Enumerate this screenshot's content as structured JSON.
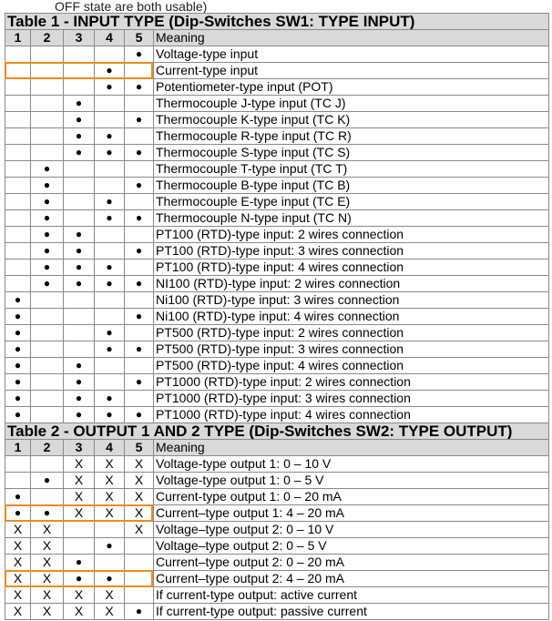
{
  "cut_text": "OFF state are both usable)",
  "table1": {
    "title": "Table 1 - INPUT TYPE (Dip-Switches SW1: TYPE INPUT)",
    "headers": [
      "1",
      "2",
      "3",
      "4",
      "5",
      "Meaning"
    ],
    "rows": [
      {
        "s": [
          "",
          "",
          "",
          "",
          "●"
        ],
        "m": "Voltage-type input"
      },
      {
        "s": [
          "",
          "",
          "",
          "●",
          ""
        ],
        "m": "Current-type input",
        "highlight": true
      },
      {
        "s": [
          "",
          "",
          "",
          "●",
          "●"
        ],
        "m": "Potentiometer-type input (POT)"
      },
      {
        "s": [
          "",
          "",
          "●",
          "",
          ""
        ],
        "m": "Thermocouple J-type input (TC J)"
      },
      {
        "s": [
          "",
          "",
          "●",
          "",
          "●"
        ],
        "m": "Thermocouple K-type input (TC K)"
      },
      {
        "s": [
          "",
          "",
          "●",
          "●",
          ""
        ],
        "m": "Thermocouple R-type input (TC R)"
      },
      {
        "s": [
          "",
          "",
          "●",
          "●",
          "●"
        ],
        "m": "Thermocouple S-type input (TC S)"
      },
      {
        "s": [
          "",
          "●",
          "",
          "",
          ""
        ],
        "m": "Thermocouple T-type input (TC T)"
      },
      {
        "s": [
          "",
          "●",
          "",
          "",
          "●"
        ],
        "m": "Thermocouple B-type input (TC B)"
      },
      {
        "s": [
          "",
          "●",
          "",
          "●",
          ""
        ],
        "m": "Thermocouple E-type input (TC E)"
      },
      {
        "s": [
          "",
          "●",
          "",
          "●",
          "●"
        ],
        "m": "Thermocouple N-type input (TC N)"
      },
      {
        "s": [
          "",
          "●",
          "●",
          "",
          ""
        ],
        "m": "PT100 (RTD)-type input: 2 wires connection"
      },
      {
        "s": [
          "",
          "●",
          "●",
          "",
          "●"
        ],
        "m": "PT100 (RTD)-type input: 3 wires connection"
      },
      {
        "s": [
          "",
          "●",
          "●",
          "●",
          ""
        ],
        "m": "PT100 (RTD)-type input: 4 wires connection"
      },
      {
        "s": [
          "",
          "●",
          "●",
          "●",
          "●"
        ],
        "m": "NI100 (RTD)-type input: 2 wires connection"
      },
      {
        "s": [
          "●",
          "",
          "",
          "",
          ""
        ],
        "m": "Ni100 (RTD)-type input: 3 wires connection"
      },
      {
        "s": [
          "●",
          "",
          "",
          "",
          "●"
        ],
        "m": "Ni100 (RTD)-type input: 4 wires connection"
      },
      {
        "s": [
          "●",
          "",
          "",
          "●",
          ""
        ],
        "m": "PT500 (RTD)-type input: 2 wires connection"
      },
      {
        "s": [
          "●",
          "",
          "",
          "●",
          "●"
        ],
        "m": "PT500 (RTD)-type input: 3 wires connection"
      },
      {
        "s": [
          "●",
          "",
          "●",
          "",
          ""
        ],
        "m": "PT500 (RTD)-type input: 4 wires connection"
      },
      {
        "s": [
          "●",
          "",
          "●",
          "",
          "●"
        ],
        "m": "PT1000 (RTD)-type input: 2 wires connection"
      },
      {
        "s": [
          "●",
          "",
          "●",
          "●",
          ""
        ],
        "m": "PT1000 (RTD)-type input: 3 wires connection"
      },
      {
        "s": [
          "●",
          "",
          "●",
          "●",
          "●"
        ],
        "m": "PT1000 (RTD)-type input: 4 wires connection"
      }
    ]
  },
  "table2": {
    "title": "Table 2 - OUTPUT 1 AND 2 TYPE (Dip-Switches SW2: TYPE OUTPUT)",
    "headers": [
      "1",
      "2",
      "3",
      "4",
      "5",
      "Meaning"
    ],
    "rows": [
      {
        "s": [
          "",
          "",
          "X",
          "X",
          "X"
        ],
        "m": "Voltage-type output 1:  0 – 10 V"
      },
      {
        "s": [
          "",
          "●",
          "X",
          "X",
          "X"
        ],
        "m": "Voltage-type output 1:  0 – 5 V"
      },
      {
        "s": [
          "●",
          "",
          "X",
          "X",
          "X"
        ],
        "m": "Current-type output 1:  0 – 20 mA"
      },
      {
        "s": [
          "●",
          "●",
          "X",
          "X",
          "X"
        ],
        "m": "Current–type output 1:  4 – 20 mA",
        "highlight": true
      },
      {
        "s": [
          "X",
          "X",
          "",
          "",
          "X"
        ],
        "m": "Voltage–type output 2:  0 – 10 V"
      },
      {
        "s": [
          "X",
          "X",
          "",
          "●",
          ""
        ],
        "m": "Voltage–type output 2:  0 – 5 V"
      },
      {
        "s": [
          "X",
          "X",
          "●",
          "",
          ""
        ],
        "m": "Current–type output 2:  0 – 20 mA"
      },
      {
        "s": [
          "X",
          "X",
          "●",
          "●",
          ""
        ],
        "m": "Current–type output 2:  4 – 20 mA",
        "highlight": true
      },
      {
        "s": [
          "X",
          "X",
          "X",
          "X",
          ""
        ],
        "m": "If current-type output: active current"
      },
      {
        "s": [
          "X",
          "X",
          "X",
          "X",
          "●"
        ],
        "m": "If current-type output: passive current"
      }
    ]
  },
  "colors": {
    "highlight": "#f08a1c",
    "header_bg": "#d9d9d9",
    "grid": "#8a8a8a"
  }
}
